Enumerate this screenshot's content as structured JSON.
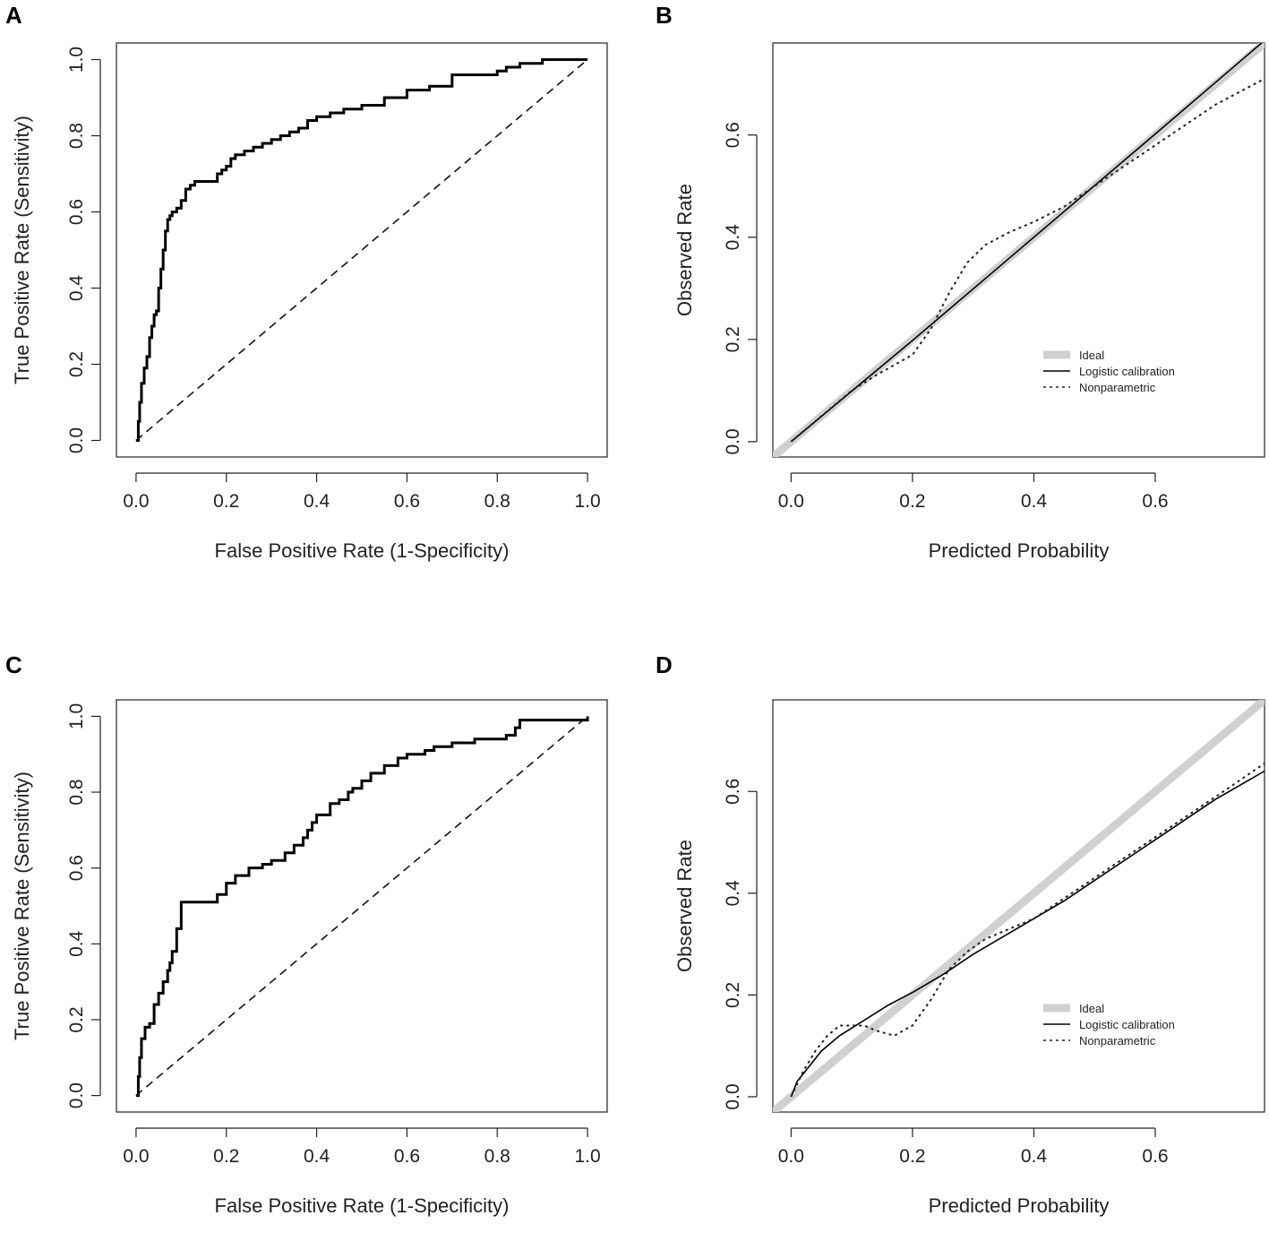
{
  "panels": [
    {
      "letter": "A",
      "chart_data": {
        "type": "line",
        "title": "",
        "xlabel": "False Positive Rate (1-Specificity)",
        "ylabel": "True Positive Rate (Sensitivity)",
        "xlim": [
          0,
          1
        ],
        "ylim": [
          0,
          1
        ],
        "xticks": [
          "0.0",
          "0.2",
          "0.4",
          "0.6",
          "0.8",
          "1.0"
        ],
        "yticks": [
          "0.0",
          "0.2",
          "0.4",
          "0.6",
          "0.8",
          "1.0"
        ],
        "series": [
          {
            "name": "ROC curve",
            "style": "solid",
            "step": true,
            "x": [
              0,
              0.005,
              0.008,
              0.012,
              0.018,
              0.024,
              0.03,
              0.035,
              0.04,
              0.045,
              0.05,
              0.055,
              0.06,
              0.065,
              0.07,
              0.075,
              0.08,
              0.09,
              0.1,
              0.11,
              0.12,
              0.13,
              0.14,
              0.16,
              0.18,
              0.19,
              0.2,
              0.21,
              0.22,
              0.24,
              0.26,
              0.28,
              0.3,
              0.32,
              0.34,
              0.36,
              0.38,
              0.4,
              0.43,
              0.46,
              0.5,
              0.55,
              0.6,
              0.65,
              0.7,
              0.75,
              0.8,
              0.82,
              0.85,
              0.88,
              0.9,
              0.95,
              1.0
            ],
            "y": [
              0,
              0.05,
              0.1,
              0.15,
              0.19,
              0.22,
              0.27,
              0.3,
              0.33,
              0.34,
              0.4,
              0.45,
              0.5,
              0.55,
              0.58,
              0.59,
              0.6,
              0.61,
              0.63,
              0.66,
              0.67,
              0.68,
              0.68,
              0.68,
              0.7,
              0.71,
              0.72,
              0.74,
              0.75,
              0.76,
              0.77,
              0.78,
              0.79,
              0.8,
              0.81,
              0.82,
              0.84,
              0.85,
              0.86,
              0.87,
              0.88,
              0.9,
              0.92,
              0.93,
              0.96,
              0.96,
              0.97,
              0.98,
              0.99,
              0.99,
              1.0,
              1.0,
              1.0
            ]
          },
          {
            "name": "Reference",
            "style": "dashed",
            "x": [
              0,
              1
            ],
            "y": [
              0,
              1
            ]
          }
        ]
      }
    },
    {
      "letter": "B",
      "chart_data": {
        "type": "line",
        "title": "",
        "xlabel": "Predicted Probability",
        "ylabel": "Observed Rate",
        "xlim": [
          -0.03,
          0.78
        ],
        "ylim": [
          -0.03,
          0.78
        ],
        "xticks": [
          "0.0",
          "0.2",
          "0.4",
          "0.6"
        ],
        "yticks": [
          "0.0",
          "0.2",
          "0.4",
          "0.6"
        ],
        "legend": [
          "Ideal",
          "Logistic calibration",
          "Nonparametric"
        ],
        "legend_position": "bottom-right",
        "series": [
          {
            "name": "Ideal",
            "style": "ideal",
            "x": [
              -0.03,
              0.78
            ],
            "y": [
              -0.03,
              0.78
            ]
          },
          {
            "name": "Logistic calibration",
            "style": "solid",
            "x": [
              0.0,
              0.2,
              0.4,
              0.6,
              0.78
            ],
            "y": [
              0.0,
              0.198,
              0.4,
              0.602,
              0.785
            ]
          },
          {
            "name": "Nonparametric",
            "style": "dotted",
            "x": [
              0.0,
              0.03,
              0.06,
              0.1,
              0.14,
              0.17,
              0.2,
              0.23,
              0.26,
              0.29,
              0.32,
              0.36,
              0.4,
              0.45,
              0.5,
              0.55,
              0.6,
              0.65,
              0.7,
              0.78
            ],
            "y": [
              0.0,
              0.03,
              0.06,
              0.1,
              0.13,
              0.15,
              0.17,
              0.22,
              0.29,
              0.35,
              0.385,
              0.41,
              0.43,
              0.46,
              0.5,
              0.54,
              0.58,
              0.62,
              0.66,
              0.71
            ]
          }
        ]
      }
    },
    {
      "letter": "C",
      "chart_data": {
        "type": "line",
        "title": "",
        "xlabel": "False Positive Rate (1-Specificity)",
        "ylabel": "True Positive Rate (Sensitivity)",
        "xlim": [
          0,
          1
        ],
        "ylim": [
          0,
          1
        ],
        "xticks": [
          "0.0",
          "0.2",
          "0.4",
          "0.6",
          "0.8",
          "1.0"
        ],
        "yticks": [
          "0.0",
          "0.2",
          "0.4",
          "0.6",
          "0.8",
          "1.0"
        ],
        "series": [
          {
            "name": "ROC curve",
            "style": "solid",
            "step": true,
            "x": [
              0,
              0.005,
              0.008,
              0.012,
              0.02,
              0.03,
              0.04,
              0.05,
              0.06,
              0.07,
              0.075,
              0.08,
              0.09,
              0.1,
              0.17,
              0.18,
              0.2,
              0.22,
              0.25,
              0.28,
              0.3,
              0.33,
              0.35,
              0.37,
              0.38,
              0.39,
              0.4,
              0.43,
              0.45,
              0.47,
              0.48,
              0.5,
              0.52,
              0.55,
              0.58,
              0.6,
              0.64,
              0.66,
              0.7,
              0.75,
              0.82,
              0.84,
              0.85,
              0.9,
              1.0
            ],
            "y": [
              0,
              0.05,
              0.1,
              0.15,
              0.18,
              0.19,
              0.24,
              0.27,
              0.3,
              0.33,
              0.35,
              0.38,
              0.44,
              0.51,
              0.51,
              0.53,
              0.56,
              0.58,
              0.6,
              0.61,
              0.62,
              0.64,
              0.66,
              0.68,
              0.7,
              0.72,
              0.74,
              0.77,
              0.78,
              0.8,
              0.81,
              0.83,
              0.85,
              0.87,
              0.89,
              0.9,
              0.91,
              0.92,
              0.93,
              0.94,
              0.95,
              0.97,
              0.99,
              0.99,
              1.0
            ]
          },
          {
            "name": "Reference",
            "style": "dashed",
            "x": [
              0,
              1
            ],
            "y": [
              0,
              1
            ]
          }
        ]
      }
    },
    {
      "letter": "D",
      "chart_data": {
        "type": "line",
        "title": "",
        "xlabel": "Predicted Probability",
        "ylabel": "Observed Rate",
        "xlim": [
          -0.03,
          0.78
        ],
        "ylim": [
          -0.03,
          0.78
        ],
        "xticks": [
          "0.0",
          "0.2",
          "0.4",
          "0.6"
        ],
        "yticks": [
          "0.0",
          "0.2",
          "0.4",
          "0.6"
        ],
        "legend": [
          "Ideal",
          "Logistic calibration",
          "Nonparametric"
        ],
        "legend_position": "bottom-right",
        "series": [
          {
            "name": "Ideal",
            "style": "ideal",
            "x": [
              -0.03,
              0.78
            ],
            "y": [
              -0.03,
              0.78
            ]
          },
          {
            "name": "Logistic calibration",
            "style": "solid",
            "x": [
              0.0,
              0.01,
              0.03,
              0.05,
              0.08,
              0.12,
              0.16,
              0.2,
              0.25,
              0.3,
              0.35,
              0.4,
              0.45,
              0.5,
              0.55,
              0.6,
              0.65,
              0.7,
              0.78
            ],
            "y": [
              0.0,
              0.03,
              0.06,
              0.09,
              0.12,
              0.15,
              0.18,
              0.205,
              0.24,
              0.28,
              0.315,
              0.35,
              0.385,
              0.425,
              0.465,
              0.505,
              0.545,
              0.585,
              0.64
            ]
          },
          {
            "name": "Nonparametric",
            "style": "dotted",
            "x": [
              0.0,
              0.02,
              0.04,
              0.06,
              0.08,
              0.1,
              0.12,
              0.14,
              0.17,
              0.2,
              0.23,
              0.26,
              0.29,
              0.32,
              0.36,
              0.4,
              0.45,
              0.5,
              0.55,
              0.6,
              0.65,
              0.7,
              0.78
            ],
            "y": [
              0.0,
              0.05,
              0.09,
              0.12,
              0.14,
              0.14,
              0.14,
              0.13,
              0.12,
              0.14,
              0.19,
              0.25,
              0.285,
              0.31,
              0.33,
              0.35,
              0.39,
              0.43,
              0.47,
              0.51,
              0.55,
              0.59,
              0.655
            ]
          }
        ]
      }
    }
  ]
}
